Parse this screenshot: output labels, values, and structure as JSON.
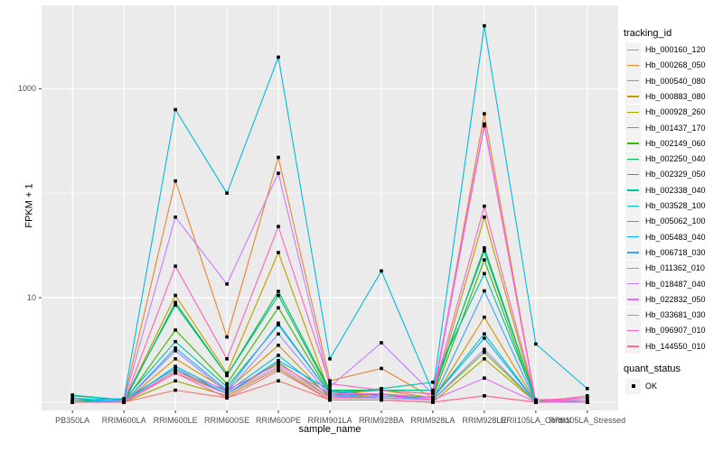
{
  "chart_data": {
    "type": "line",
    "xlabel": "sample_name",
    "ylabel": "FPKM + 1",
    "y_scale": "log10",
    "ylim_log": [
      -0.06,
      3.88
    ],
    "grid": true,
    "panel_bg": "#EBEBEB",
    "grid_color": "#FFFFFF",
    "point_color": "#000000",
    "point_shape": "square",
    "y_ticks": [
      {
        "label": "1000",
        "value": 1000
      },
      {
        "label": "10",
        "value": 10
      }
    ],
    "y_minor": [
      1,
      100
    ],
    "categories": [
      "PB350LA",
      "RRIM600LA",
      "RRIM600LE",
      "RRIM600SE",
      "RRIM600PE",
      "RRIM901LA",
      "RRIM928BA",
      "RRIM928LA",
      "RRIM928LE",
      "RRII105LA_Control",
      "RRII105LA_Stressed"
    ],
    "legend": {
      "title": "tracking_id",
      "position": "right"
    },
    "quant_legend": {
      "title": "quant_status",
      "items": [
        {
          "label": "OK",
          "marker": "black-square"
        }
      ]
    },
    "series": [
      {
        "name": "Hb_000160_120",
        "color": "#F8766D",
        "values": [
          1.0,
          1.0,
          1.3,
          1.1,
          1.6,
          1.05,
          1.05,
          1.0,
          1.15,
          1.0,
          1.05
        ]
      },
      {
        "name": "Hb_000268_050",
        "color": "#EA8331",
        "values": [
          1.0,
          1.05,
          131,
          4.2,
          220,
          1.6,
          2.1,
          1.1,
          575,
          1.0,
          1.0
        ]
      },
      {
        "name": "Hb_000540_080",
        "color": "#D89000",
        "values": [
          1.0,
          1.0,
          2.6,
          1.3,
          3.5,
          1.1,
          1.2,
          1.05,
          6.5,
          1.0,
          1.0
        ]
      },
      {
        "name": "Hb_000883_080",
        "color": "#C09B00",
        "values": [
          1.0,
          1.0,
          10.5,
          1.9,
          27,
          1.2,
          1.3,
          1.1,
          59,
          1.0,
          1.0
        ]
      },
      {
        "name": "Hb_000928_260",
        "color": "#A3A500",
        "values": [
          1.0,
          1.0,
          1.6,
          1.15,
          2.1,
          1.05,
          1.05,
          1.0,
          2.6,
          1.0,
          1.0
        ]
      },
      {
        "name": "Hb_001437_170",
        "color": "#7CAE00",
        "values": [
          1.05,
          1.0,
          2.0,
          1.2,
          2.4,
          1.1,
          1.1,
          1.05,
          3.0,
          1.0,
          1.0
        ]
      },
      {
        "name": "Hb_002149_060",
        "color": "#39B600",
        "values": [
          1.0,
          1.0,
          4.9,
          1.5,
          8.0,
          1.2,
          1.2,
          1.1,
          23,
          1.0,
          1.0
        ]
      },
      {
        "name": "Hb_002250_040",
        "color": "#00BB4E",
        "values": [
          1.05,
          1.0,
          9.0,
          1.8,
          11.5,
          1.3,
          1.3,
          1.2,
          30,
          1.05,
          1.0
        ]
      },
      {
        "name": "Hb_002329_050",
        "color": "#00BF7D",
        "values": [
          1.15,
          1.05,
          8.5,
          1.8,
          10.5,
          1.25,
          1.3,
          1.3,
          28,
          1.05,
          1.0
        ]
      },
      {
        "name": "Hb_002338_040",
        "color": "#00C1A3",
        "values": [
          1.17,
          1.05,
          3.8,
          1.4,
          5.5,
          1.2,
          1.35,
          1.55,
          17,
          1.05,
          1.0
        ]
      },
      {
        "name": "Hb_003528_100",
        "color": "#00BFC4",
        "values": [
          1.1,
          1.0,
          2.2,
          1.25,
          2.8,
          1.15,
          1.2,
          1.1,
          4.5,
          1.0,
          1.0
        ]
      },
      {
        "name": "Hb_005062_100",
        "color": "#00BAE0",
        "values": [
          1.05,
          1.08,
          630,
          100,
          2000,
          2.6,
          18,
          1.25,
          4000,
          3.6,
          1.35
        ]
      },
      {
        "name": "Hb_005483_040",
        "color": "#00B0F6",
        "values": [
          1.0,
          1.05,
          2.1,
          1.2,
          2.5,
          1.3,
          1.15,
          1.1,
          4.1,
          1.0,
          1.0
        ]
      },
      {
        "name": "Hb_006718_030",
        "color": "#35A2FF",
        "values": [
          1.0,
          1.0,
          3.3,
          1.3,
          5.7,
          1.2,
          1.1,
          1.05,
          11.6,
          1.0,
          1.0
        ]
      },
      {
        "name": "Hb_011362_010",
        "color": "#9590FF",
        "values": [
          1.0,
          1.0,
          3.1,
          1.25,
          4.5,
          1.15,
          1.1,
          1.05,
          3.2,
          1.0,
          1.0
        ]
      },
      {
        "name": "Hb_018487_040",
        "color": "#C77CFF",
        "values": [
          1.0,
          1.02,
          59,
          13.5,
          155,
          1.4,
          3.7,
          1.2,
          460,
          1.0,
          1.0
        ]
      },
      {
        "name": "Hb_022832_050",
        "color": "#E76BF3",
        "values": [
          1.0,
          1.0,
          1.9,
          1.2,
          2.2,
          1.1,
          1.15,
          1.05,
          1.7,
          1.0,
          1.1
        ]
      },
      {
        "name": "Hb_033681_030",
        "color": "#FA62DB",
        "values": [
          1.0,
          1.0,
          2.0,
          1.3,
          2.3,
          1.2,
          1.2,
          1.1,
          440,
          1.0,
          1.05
        ]
      },
      {
        "name": "Hb_096907_010",
        "color": "#FF62BC",
        "values": [
          1.0,
          1.0,
          20,
          2.6,
          48,
          1.5,
          1.3,
          1.2,
          75,
          1.05,
          1.1
        ]
      },
      {
        "name": "Hb_144550_010",
        "color": "#FF6A98",
        "values": [
          1.0,
          1.0,
          1.9,
          1.1,
          2.0,
          1.05,
          1.05,
          1.0,
          1.15,
          1.0,
          1.15
        ]
      }
    ]
  }
}
